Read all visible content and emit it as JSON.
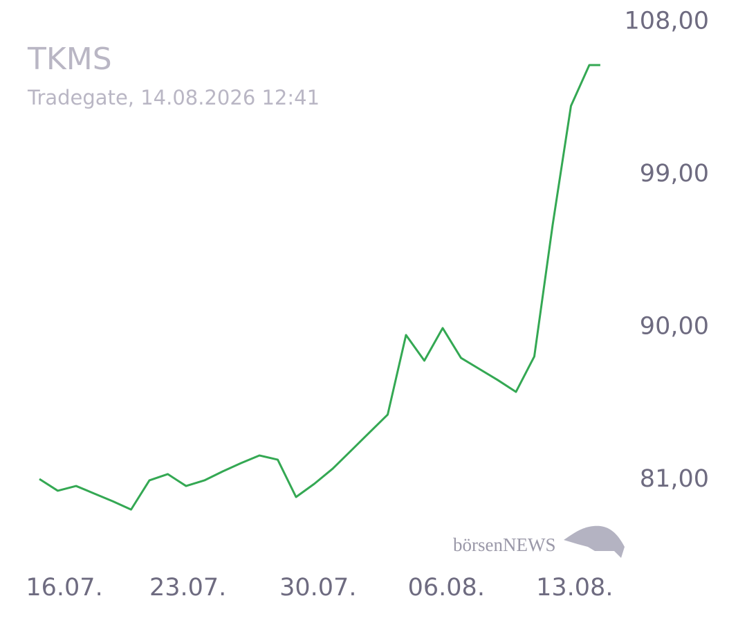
{
  "chart_data": {
    "type": "line",
    "title": "TKMS",
    "subtitle": "Tradegate, 14.08.2026 12:41",
    "watermark": "börsenNEWS",
    "x": [
      0,
      1,
      2,
      3,
      4,
      5,
      6,
      7,
      8,
      9,
      10,
      11,
      12,
      13,
      14,
      15,
      16,
      17,
      18,
      19,
      20,
      21,
      22,
      23,
      24,
      25,
      26,
      27,
      28,
      29,
      30,
      30.6
    ],
    "series": [
      {
        "name": "TKMS",
        "color": "#34a853",
        "values": [
          81.04,
          80.35,
          80.63,
          80.18,
          79.73,
          79.24,
          80.96,
          81.33,
          80.63,
          80.96,
          81.49,
          81.98,
          82.43,
          82.18,
          79.98,
          80.76,
          81.65,
          82.71,
          83.78,
          84.84,
          89.53,
          88.02,
          89.94,
          88.18,
          87.53,
          86.88,
          86.18,
          88.27,
          96.02,
          103.04,
          105.45,
          105.45
        ]
      }
    ],
    "xlim": [
      0,
      31
    ],
    "xticks": [
      {
        "value": 1.36,
        "label": "16.07."
      },
      {
        "value": 8.1,
        "label": "23.07."
      },
      {
        "value": 15.2,
        "label": "30.07."
      },
      {
        "value": 22.2,
        "label": "06.08."
      },
      {
        "value": 29.2,
        "label": "13.08."
      }
    ],
    "ylim": [
      77,
      108.5
    ],
    "yticks": [
      {
        "value": 81,
        "label": "81,00"
      },
      {
        "value": 90,
        "label": "90,00"
      },
      {
        "value": 99,
        "label": "99,00"
      },
      {
        "value": 108,
        "label": "108,00"
      }
    ],
    "grid": false
  }
}
